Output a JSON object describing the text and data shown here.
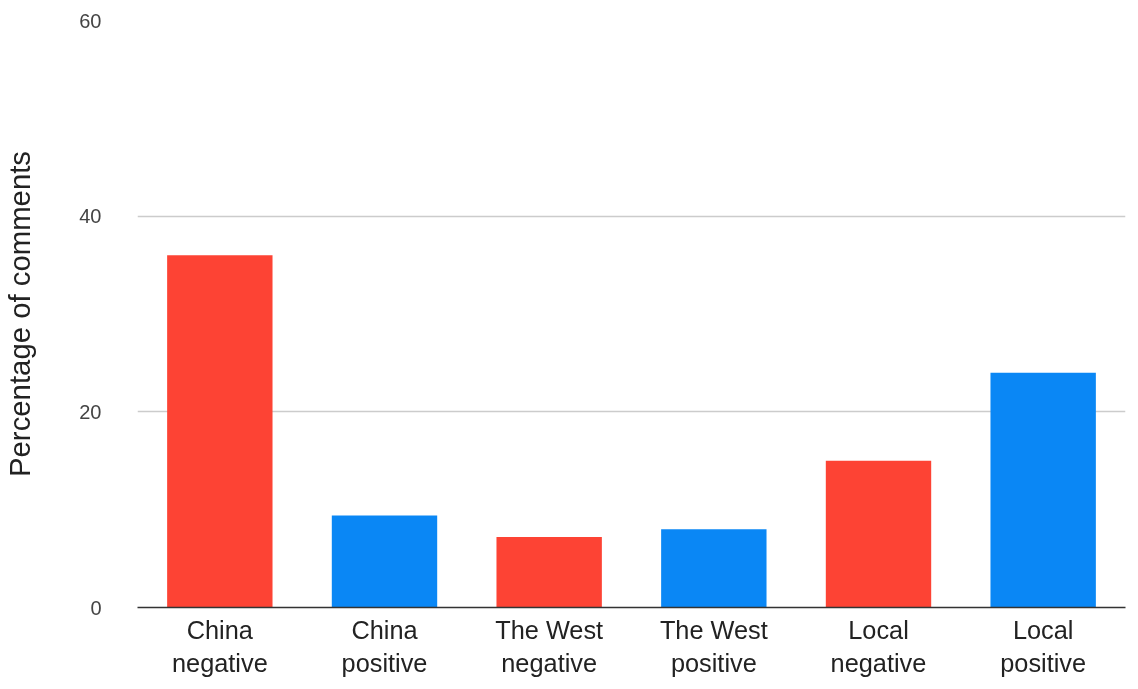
{
  "chart_data": {
    "type": "bar",
    "ylabel": "Percentage of comments",
    "categories": [
      "China negative",
      "China positive",
      "The West negative",
      "The West positive",
      "Local negative",
      "Local positive"
    ],
    "values": [
      36.0,
      9.4,
      7.2,
      8.0,
      15.0,
      24.0
    ],
    "colors": [
      "#fd4334",
      "#0a87f5",
      "#fd4334",
      "#0a87f5",
      "#fd4334",
      "#0a87f5"
    ],
    "ylim": [
      0,
      60
    ],
    "yticks": [
      0,
      20,
      40,
      60
    ],
    "grid": "y"
  }
}
